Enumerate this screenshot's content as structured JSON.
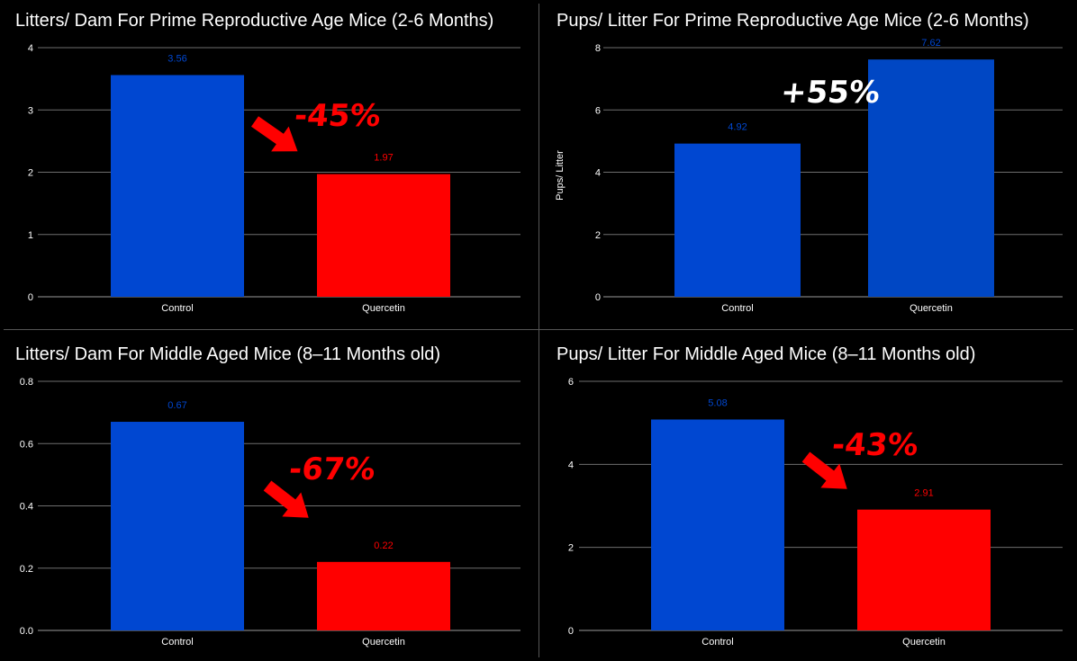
{
  "chart_data": [
    {
      "type": "bar",
      "title": "Litters/ Dam For Prime Reproductive Age Mice (2-6 Months)",
      "categories": [
        "Control",
        "Quercetin"
      ],
      "values": [
        3.56,
        1.97
      ],
      "bar_colors": [
        "#0047d1",
        "#ff0000"
      ],
      "label_colors": [
        "#0047d1",
        "#ff0000"
      ],
      "ylim": [
        0,
        4
      ],
      "yticks": [
        "0",
        "1",
        "2",
        "3",
        "4"
      ],
      "ylabel": "",
      "annotation": {
        "text": "-45%",
        "color": "#ff0000"
      },
      "grid": true
    },
    {
      "type": "bar",
      "title": "Pups/ Litter For Prime Reproductive Age Mice (2-6 Months)",
      "categories": [
        "Control",
        "Quercetin"
      ],
      "values": [
        4.92,
        7.62
      ],
      "bar_colors": [
        "#0047d1",
        "#0047c4"
      ],
      "label_colors": [
        "#0047d1",
        "#0047d1"
      ],
      "ylim": [
        0,
        8
      ],
      "yticks": [
        "0",
        "2",
        "4",
        "6",
        "8"
      ],
      "ylabel": "Pups/ Litter",
      "annotation": {
        "text": "+55%",
        "color": "#ffffff"
      },
      "grid": true
    },
    {
      "type": "bar",
      "title": "Litters/ Dam For Middle Aged Mice (8–11 Months old)",
      "categories": [
        "Control",
        "Quercetin"
      ],
      "values": [
        0.67,
        0.22
      ],
      "bar_colors": [
        "#0047d1",
        "#ff0000"
      ],
      "label_colors": [
        "#0047d1",
        "#ff0000"
      ],
      "ylim": [
        0,
        0.8
      ],
      "yticks": [
        "0.0",
        "0.2",
        "0.4",
        "0.6",
        "0.8"
      ],
      "ylabel": "",
      "annotation": {
        "text": "-67%",
        "color": "#ff0000"
      },
      "grid": true
    },
    {
      "type": "bar",
      "title": "Pups/ Litter For Middle Aged Mice (8–11 Months old)",
      "categories": [
        "Control",
        "Quercetin"
      ],
      "values": [
        5.08,
        2.91
      ],
      "bar_colors": [
        "#0047d1",
        "#ff0000"
      ],
      "label_colors": [
        "#0047d1",
        "#ff0000"
      ],
      "ylim": [
        0,
        6
      ],
      "yticks": [
        "0",
        "2",
        "4",
        "6"
      ],
      "ylabel": "",
      "annotation": {
        "text": "-43%",
        "color": "#ff0000"
      },
      "grid": true
    }
  ]
}
